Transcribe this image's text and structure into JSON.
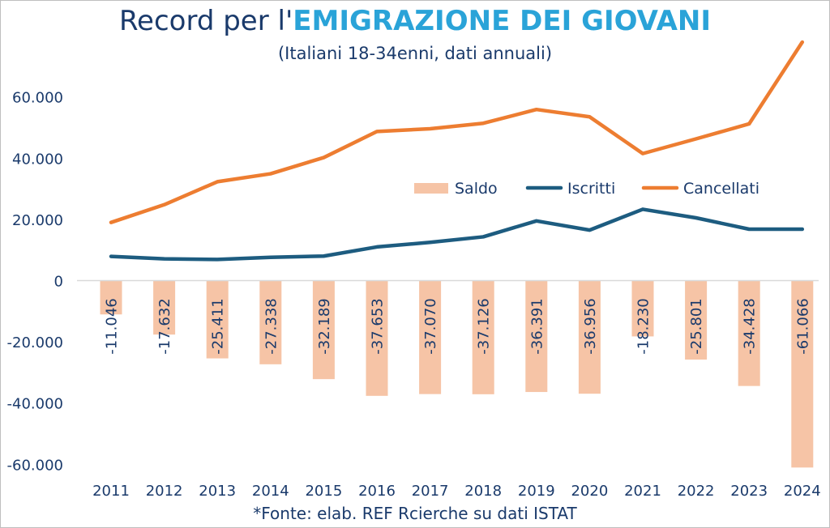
{
  "title_plain": "Record per l'",
  "title_highlight": "EMIGRAZIONE DEI GIOVANI",
  "subtitle": "(Italiani 18-34enni, dati annuali)",
  "source": "*Fonte: elab. REF Rcierche su dati ISTAT",
  "colors": {
    "saldo": "#f6c4a6",
    "iscritti": "#1d5c80",
    "cancellati": "#ed7d31",
    "text": "#1a3a6b"
  },
  "chart_data": {
    "type": "bar",
    "categories": [
      "2011",
      "2012",
      "2013",
      "2014",
      "2015",
      "2016",
      "2017",
      "2018",
      "2019",
      "2020",
      "2021",
      "2022",
      "2023",
      "2024"
    ],
    "ylim": [
      -60000,
      70000
    ],
    "yticks": [
      60000,
      40000,
      20000,
      0,
      -20000,
      -40000,
      -60000
    ],
    "ytick_labels": [
      "60.000",
      "40.000",
      "20.000",
      "0",
      "-20.000",
      "-40.000",
      "-60.000"
    ],
    "grid": false,
    "legend_position": "middle-right",
    "series": [
      {
        "name": "Saldo",
        "type": "bar",
        "values": [
          -11046,
          -17632,
          -25411,
          -27338,
          -32189,
          -37653,
          -37070,
          -37126,
          -36391,
          -36956,
          -18230,
          -25801,
          -34428,
          -61066
        ],
        "labels": [
          "-11.046",
          "-17.632",
          "-25.411",
          "-27.338",
          "-32.189",
          "-37.653",
          "-37.070",
          "-37.126",
          "-36.391",
          "-36.956",
          "-18.230",
          "-25.801",
          "-34.428",
          "-61.066"
        ]
      },
      {
        "name": "Iscritti",
        "type": "line",
        "values": [
          7900,
          7100,
          6900,
          7600,
          8000,
          11000,
          12500,
          14300,
          19500,
          16500,
          23300,
          20500,
          16800,
          16800
        ]
      },
      {
        "name": "Cancellati",
        "type": "line",
        "values": [
          19000,
          24800,
          32300,
          34900,
          40200,
          48700,
          49600,
          51400,
          55900,
          53500,
          41500,
          46300,
          51200,
          77900
        ]
      }
    ]
  }
}
